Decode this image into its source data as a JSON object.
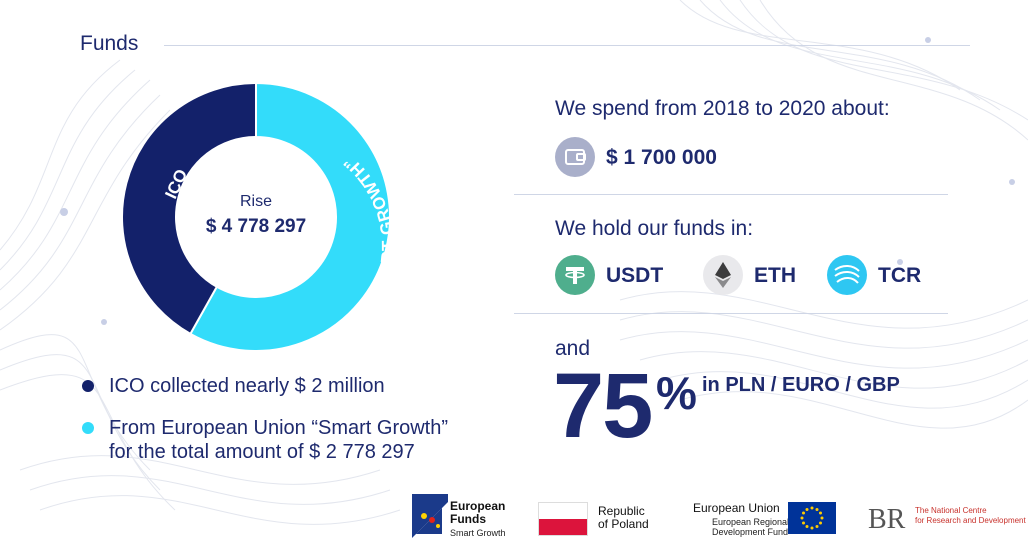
{
  "header": {
    "title": "Funds"
  },
  "chart_data": {
    "type": "pie",
    "title": "",
    "center_label": "Rise",
    "center_value": "$ 4 778 297",
    "series": [
      {
        "name": "ICO",
        "value": 2000000,
        "color": "#13216a"
      },
      {
        "name": "EU “SMART GROWTH”",
        "value": 2778297,
        "color": "#33dcfa"
      }
    ]
  },
  "legend": [
    {
      "text": "ICO collected nearly $ 2 million",
      "text2": "",
      "color": "#13216a"
    },
    {
      "text": "From European Union “Smart Growth”",
      "text2": "for the total amount of $ 2 778 297",
      "color": "#33dcfa"
    }
  ],
  "spend": {
    "heading": "We spend from 2018 to 2020 about:",
    "amount": "$ 1 700 000",
    "icon": "wallet-icon"
  },
  "holdings": {
    "heading": "We hold our funds in:",
    "coins": [
      {
        "label": "USDT",
        "icon": "tether-icon",
        "color": "#4fae8d"
      },
      {
        "label": "ETH",
        "icon": "ethereum-icon",
        "color": "#e9e9ec"
      },
      {
        "label": "TCR",
        "icon": "tcr-icon",
        "color": "#2ec7f2"
      }
    ]
  },
  "fiat": {
    "and_label": "and",
    "percent_value": "75",
    "percent_sign": "%",
    "currencies": "in PLN / EURO / GBP"
  },
  "logos": {
    "eu_funds": {
      "line1": "European",
      "line2": "Funds",
      "line3": "Smart Growth"
    },
    "poland": {
      "line1": "Republic",
      "line2": "of Poland"
    },
    "eu": {
      "line1": "European Union",
      "line2": "European Regional",
      "line3": "Development Fund"
    },
    "ncbr": {
      "line1": "The National Centre",
      "line2": "for Research and Development"
    }
  }
}
